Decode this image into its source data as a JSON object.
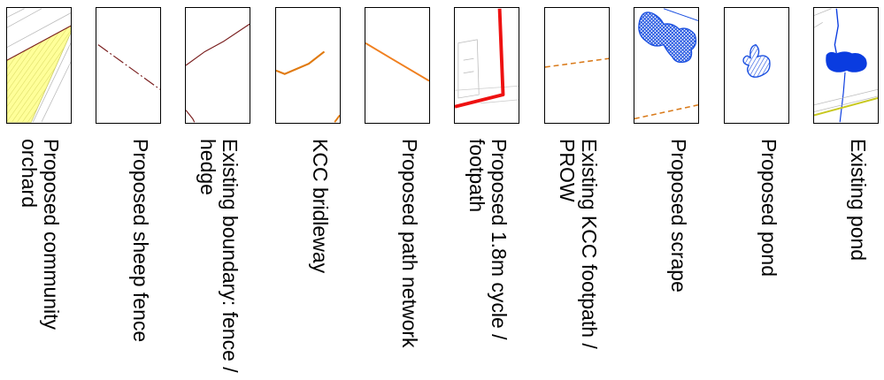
{
  "legend": {
    "items": [
      {
        "label": "Proposed community orchard",
        "colors": {
          "fill": "#ffff99",
          "line": "#7a1f1f"
        }
      },
      {
        "label": "Proposed sheep fence",
        "colors": {
          "line": "#7a1f1f"
        }
      },
      {
        "label": "Existing boundary: fence / hedge",
        "colors": {
          "line": "#7a1f1f"
        }
      },
      {
        "label": "KCC bridleway",
        "colors": {
          "line": "#e07a10"
        }
      },
      {
        "label": "Proposed path network",
        "colors": {
          "line": "#f08020"
        }
      },
      {
        "label": "Proposed 1.8m cycle / footpath",
        "colors": {
          "line": "#ee1111"
        }
      },
      {
        "label": "Existing KCC footpath / PROW",
        "colors": {
          "line": "#d97a1a"
        }
      },
      {
        "label": "Proposed scrape",
        "colors": {
          "fill": "#1a4fe0"
        }
      },
      {
        "label": "Proposed pond",
        "colors": {
          "fill": "#1a4fe0"
        }
      },
      {
        "label": "Existing pond",
        "colors": {
          "fill": "#0a3ce0"
        }
      }
    ]
  }
}
